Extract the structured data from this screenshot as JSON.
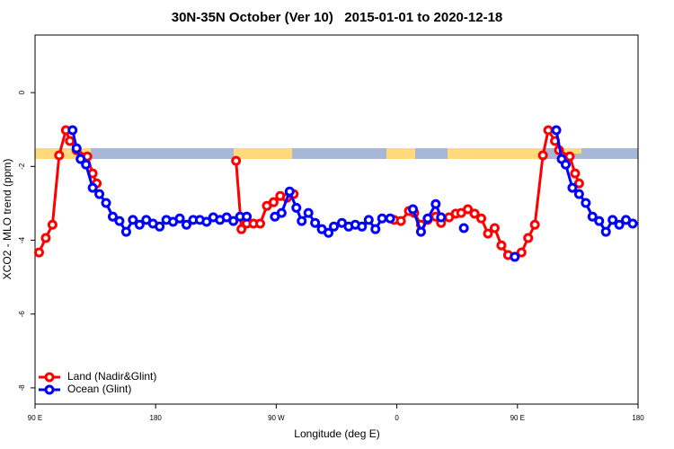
{
  "chart_data": {
    "type": "line",
    "title": "30N-35N October (Ver 10)   2015-01-01 to 2020-12-18",
    "x_label": "Longitude (deg E)",
    "y_label": "XCO2 - MLO trend (ppm)",
    "xlim": [
      90,
      540
    ],
    "ylim": [
      -8.44,
      1.56
    ],
    "xticks": [
      {
        "value": 90,
        "label": "90 E"
      },
      180,
      {
        "value": 270,
        "label": "90 W"
      },
      {
        "value": 360,
        "label": "0"
      },
      {
        "value": 450,
        "label": "90 E"
      },
      {
        "value": 540,
        "label": "180"
      }
    ],
    "yticks": [
      0,
      -2,
      -4,
      -6,
      -8
    ],
    "legend": "bottom-left",
    "series": [
      {
        "name": "Land (Nadir&Glint)",
        "color": "#ff0000",
        "x": [
          93,
          98,
          103,
          108,
          113,
          116,
          121,
          129,
          133,
          136,
          190,
          240,
          244,
          248,
          253,
          258,
          263,
          268,
          273,
          278,
          283,
          315,
          358,
          363,
          369,
          373,
          378,
          383,
          389,
          393,
          399,
          404,
          408,
          413,
          418,
          423,
          428,
          433,
          438,
          443,
          448,
          453,
          458,
          463,
          469,
          473,
          478,
          481,
          489,
          493,
          496
        ],
        "values": [
          -4.33,
          -3.94,
          -3.58,
          -1.7,
          -1.02,
          -1.31,
          -1.56,
          -1.73,
          -2.19,
          -2.46,
          null,
          -1.85,
          -3.7,
          -3.55,
          -3.55,
          -3.55,
          -3.07,
          -2.97,
          -2.8,
          -2.85,
          -2.75,
          null,
          -3.45,
          -3.48,
          -3.21,
          -3.26,
          -3.58,
          -3.45,
          -3.36,
          -3.53,
          -3.38,
          -3.28,
          -3.26,
          -3.16,
          -3.28,
          -3.41,
          -3.82,
          -3.67,
          -4.14,
          -4.4,
          -4.45,
          -4.33,
          -3.94,
          -3.58,
          -1.7,
          -1.02,
          -1.31,
          -1.56,
          -1.73,
          -2.19,
          -2.46
        ]
      },
      {
        "name": "Ocean (Glint)",
        "color": "#0000ff",
        "x": [
          118,
          121,
          124,
          128,
          133,
          138,
          143,
          148,
          153,
          158,
          163,
          168,
          173,
          178,
          183,
          188,
          193,
          198,
          203,
          208,
          213,
          218,
          223,
          228,
          233,
          238,
          243,
          248,
          258,
          269,
          274,
          280,
          285,
          289,
          294,
          299,
          304,
          309,
          313,
          319,
          324,
          329,
          334,
          339,
          344,
          349,
          355,
          363,
          372,
          378,
          383,
          389,
          393,
          398,
          410,
          428,
          448,
          465,
          479,
          483,
          486,
          491,
          496,
          501,
          506,
          511,
          516,
          521,
          526,
          531,
          536
        ],
        "values": [
          -1.02,
          -1.51,
          -1.8,
          -1.95,
          -2.58,
          -2.75,
          -2.99,
          -3.36,
          -3.48,
          -3.77,
          -3.45,
          -3.58,
          -3.45,
          -3.55,
          -3.63,
          -3.45,
          -3.5,
          -3.41,
          -3.58,
          -3.45,
          -3.45,
          -3.5,
          -3.38,
          -3.45,
          -3.38,
          -3.48,
          -3.36,
          -3.36,
          null,
          -3.36,
          -3.26,
          -2.68,
          -3.12,
          -3.48,
          -3.26,
          -3.53,
          -3.7,
          -3.8,
          -3.63,
          -3.53,
          -3.63,
          -3.58,
          -3.63,
          -3.45,
          -3.7,
          -3.41,
          -3.41,
          null,
          -3.16,
          -3.77,
          -3.41,
          -3.02,
          -3.38,
          null,
          -3.67,
          null,
          -4.45,
          null,
          -1.02,
          -1.8,
          -1.95,
          -2.58,
          -2.75,
          -2.99,
          -3.36,
          -3.48,
          -3.77,
          -3.45,
          -3.58,
          -3.45,
          -3.55
        ]
      }
    ]
  }
}
